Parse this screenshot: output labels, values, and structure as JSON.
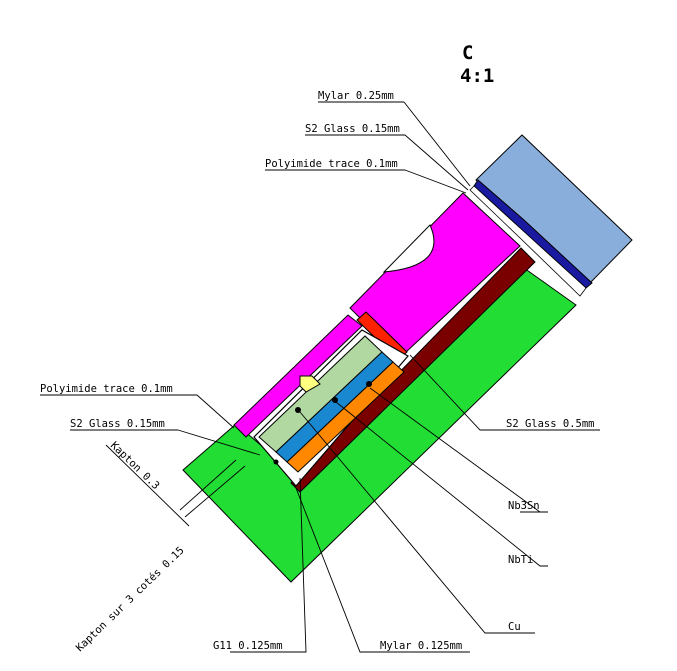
{
  "title": {
    "view": "C",
    "scale": "4:1"
  },
  "labels": {
    "mylar_top": "Mylar 0.25mm",
    "s2_glass_top": "S2 Glass 0.15mm",
    "polyimide_top": "Polyimide trace 0.1mm",
    "polyimide_left": "Polyimide trace 0.1mm",
    "s2_glass_left": "S2 Glass 0.15mm",
    "s2_glass_right": "S2 Glass 0.5mm",
    "nb3sn": "Nb3Sn",
    "nbti": "NbTi",
    "cu": "Cu",
    "g11": "G11 0.125mm",
    "mylar_bottom": "Mylar 0.125mm",
    "kapton_03": "Kapton 0.3",
    "kapton_3_sides": "Kapton sur 3 cotés 0.15"
  },
  "colors": {
    "magenta": "#ff00ff",
    "green": "#22dd33",
    "dark_red": "#7a0000",
    "light_blue": "#8aaedb",
    "dark_blue": "#1a1aa0",
    "light_green": "#b0d8a0",
    "blue": "#1a88d0",
    "orange": "#ff8800",
    "yellow": "#ffff80",
    "red": "#ff2200"
  }
}
